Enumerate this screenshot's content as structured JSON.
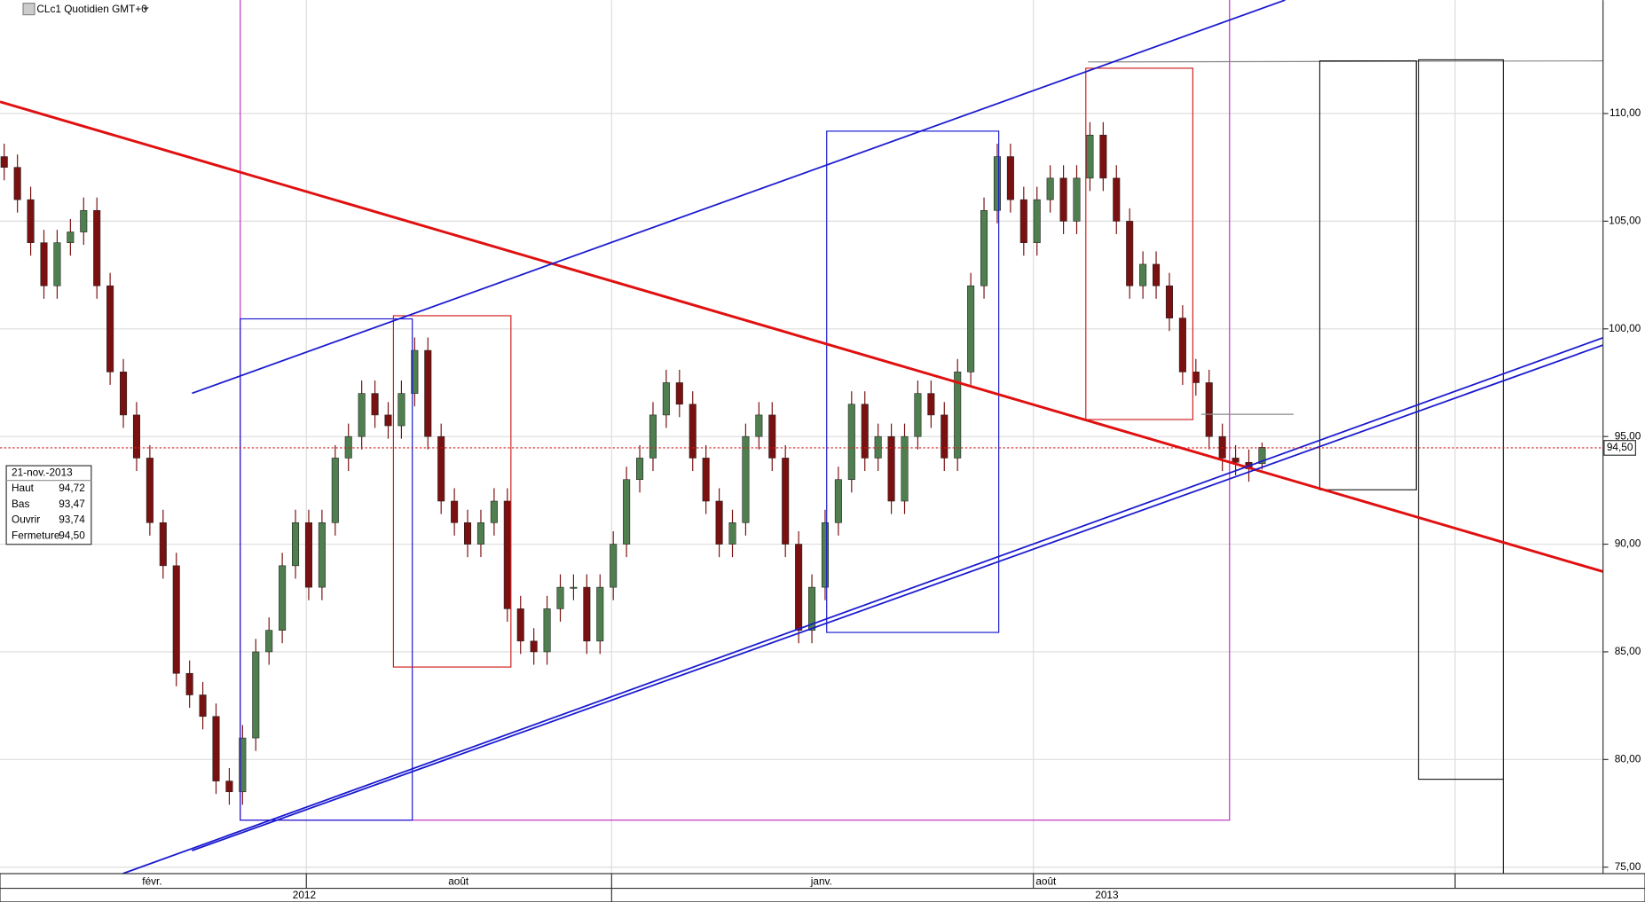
{
  "chart_data": {
    "type": "candlestick",
    "title": "CLc1 Quotidien GMT+0",
    "open": [
      108,
      107.5,
      106,
      104,
      102,
      104,
      104.5,
      105.5,
      102,
      98,
      96,
      94,
      91,
      89,
      84,
      83,
      82,
      79,
      78.5,
      81,
      85,
      86,
      89,
      91,
      88,
      91,
      94,
      95,
      97,
      96,
      95.5,
      97,
      99,
      95,
      92,
      91,
      90,
      91,
      92,
      87,
      85.5,
      85,
      87,
      88,
      88,
      85.5,
      88,
      90,
      93,
      94,
      96,
      97.5,
      96.5,
      94,
      92,
      90,
      91,
      95,
      96,
      94,
      90,
      86,
      88,
      91,
      93,
      96.5,
      94,
      95,
      92,
      95,
      97,
      96,
      94,
      98,
      102,
      105.5,
      108,
      106,
      104,
      106,
      107,
      105,
      107,
      109,
      107,
      105,
      102,
      103,
      102,
      100.5,
      98,
      97.5,
      95,
      94,
      93.8,
      93.74
    ],
    "high": [
      108.6,
      108.1,
      106.6,
      104.6,
      104.6,
      105.1,
      106.1,
      106.1,
      102.6,
      98.6,
      96.6,
      94.6,
      91.6,
      89.6,
      84.6,
      83.6,
      82.6,
      79.6,
      81.6,
      85.6,
      86.6,
      89.6,
      91.6,
      91.6,
      91.6,
      94.6,
      95.6,
      97.6,
      97.6,
      96.6,
      97.6,
      99.6,
      99.6,
      95.6,
      92.6,
      91.6,
      91.6,
      92.6,
      92.6,
      87.6,
      86.1,
      87.6,
      88.6,
      88.6,
      88.6,
      88.6,
      90.6,
      93.6,
      94.6,
      96.6,
      98.1,
      98.1,
      97.1,
      94.6,
      92.6,
      91.6,
      95.6,
      96.6,
      96.6,
      94.6,
      90.6,
      88.6,
      91.6,
      93.6,
      97.1,
      97.1,
      95.6,
      95.6,
      95.6,
      97.6,
      97.6,
      96.6,
      98.6,
      102.6,
      106.1,
      108.6,
      108.6,
      106.6,
      106.6,
      107.6,
      107.6,
      107.6,
      109.6,
      109.6,
      107.6,
      105.6,
      103.6,
      103.6,
      102.6,
      101.1,
      98.6,
      98.1,
      95.6,
      94.6,
      94.4,
      94.72
    ],
    "low": [
      106.9,
      105.4,
      103.4,
      101.4,
      101.4,
      103.4,
      103.9,
      101.4,
      97.4,
      95.4,
      93.4,
      90.4,
      88.4,
      83.4,
      82.4,
      81.4,
      78.4,
      77.9,
      77.9,
      80.4,
      84.4,
      85.4,
      88.4,
      87.4,
      87.4,
      90.4,
      93.4,
      94.4,
      95.4,
      94.9,
      94.9,
      96.4,
      94.4,
      91.4,
      90.4,
      89.4,
      89.4,
      90.4,
      86.4,
      84.9,
      84.4,
      84.4,
      86.4,
      87.4,
      84.9,
      84.9,
      87.4,
      89.4,
      92.4,
      93.4,
      95.4,
      95.9,
      93.4,
      91.4,
      89.4,
      89.4,
      90.4,
      94.4,
      93.4,
      89.4,
      85.4,
      85.4,
      87.4,
      90.4,
      92.4,
      93.4,
      93.4,
      91.4,
      91.4,
      94.4,
      95.4,
      93.4,
      93.4,
      97.4,
      101.4,
      104.9,
      105.4,
      103.4,
      103.4,
      105.4,
      104.4,
      104.4,
      106.4,
      106.4,
      104.4,
      101.4,
      101.4,
      101.4,
      99.9,
      97.4,
      96.9,
      94.4,
      93.4,
      93.2,
      92.9,
      93.47
    ],
    "close": [
      107.5,
      106,
      104,
      102,
      104,
      104.5,
      105.5,
      102,
      98,
      96,
      94,
      91,
      89,
      84,
      83,
      82,
      79,
      78.5,
      81,
      85,
      86,
      89,
      91,
      88,
      91,
      94,
      95,
      97,
      96,
      95.5,
      97,
      99,
      95,
      92,
      91,
      90,
      91,
      92,
      87,
      85.5,
      85,
      87,
      88,
      88,
      85.5,
      88,
      90,
      93,
      94,
      96,
      97.5,
      96.5,
      94,
      92,
      90,
      91,
      95,
      96,
      94,
      90,
      86,
      88,
      91,
      93,
      96.5,
      94,
      95,
      92,
      95,
      97,
      96,
      94,
      98,
      102,
      105.5,
      108,
      106,
      104,
      106,
      107,
      105,
      107,
      109,
      107,
      105,
      102,
      103,
      102,
      100.5,
      98,
      97.5,
      95,
      94,
      93.8,
      93.5,
      94.5
    ],
    "up_color": "#4f7f4f",
    "down_color": "#7a1010",
    "ylim": [
      74.7,
      115.27
    ],
    "yticks": [
      {
        "value": 75,
        "label": "75,00"
      },
      {
        "value": 80,
        "label": "80,00"
      },
      {
        "value": 85,
        "label": "85,00"
      },
      {
        "value": 90,
        "label": "90,00"
      },
      {
        "value": 95,
        "label": "95,00"
      },
      {
        "value": 100,
        "label": "100,00"
      },
      {
        "value": 105,
        "label": "105,00"
      },
      {
        "value": 110,
        "label": "110,00"
      }
    ],
    "grid": true,
    "time_axis": {
      "months": [
        "févr.",
        "août",
        "janv.",
        "août"
      ],
      "years": [
        "2012",
        "2013"
      ]
    },
    "info": {
      "date": "21-nov.-2013",
      "rows": [
        {
          "label": "Haut",
          "value": "94,72"
        },
        {
          "label": "Bas",
          "value": "93,47"
        },
        {
          "label": "Ouvrir",
          "value": "93,74"
        },
        {
          "label": "Fermeture",
          "value": "94,50"
        }
      ]
    }
  }
}
